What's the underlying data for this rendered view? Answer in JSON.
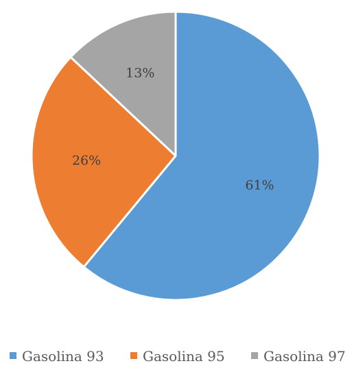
{
  "chart_data": {
    "type": "pie",
    "title": "",
    "categories": [
      "Gasolina 93",
      "Gasolina 95",
      "Gasolina 97"
    ],
    "values": [
      61,
      26,
      13
    ],
    "data_labels": [
      "61%",
      "26%",
      "13%"
    ],
    "colors": [
      "#5b9bd5",
      "#ed7d31",
      "#a5a5a5"
    ],
    "start_angle": "12 o'clock",
    "direction": "clockwise",
    "legend": {
      "position": "bottom",
      "entries": [
        "Gasolina 93",
        "Gasolina 95",
        "Gasolina 97"
      ]
    }
  }
}
